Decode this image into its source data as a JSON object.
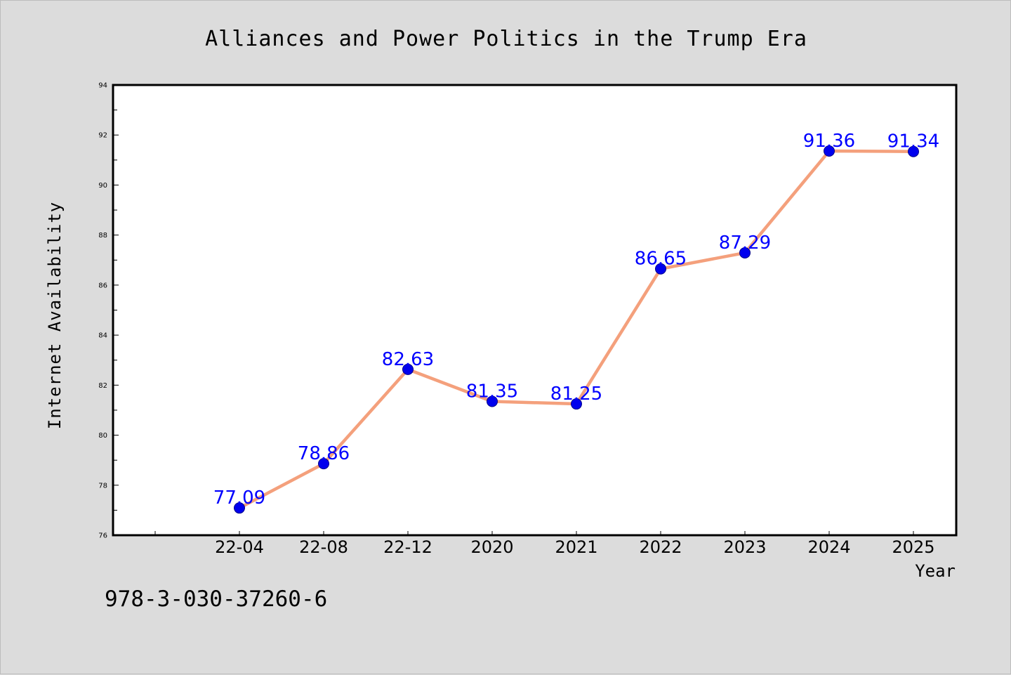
{
  "chart_data": {
    "type": "line",
    "title": "Alliances and Power Politics in the Trump Era",
    "xlabel": "Year",
    "ylabel": "Internet Availability",
    "categories": [
      "22-04",
      "22-08",
      "22-12",
      "2020",
      "2021",
      "2022",
      "2023",
      "2024",
      "2025"
    ],
    "series": [
      {
        "values": [
          77.09,
          78.86,
          82.63,
          81.35,
          81.25,
          86.65,
          87.29,
          91.36,
          91.34
        ]
      }
    ],
    "data_labels": [
      "77.09",
      "78.86",
      "82.63",
      "81.35",
      "81.25",
      "86.65",
      "87.29",
      "91.36",
      "91.34"
    ],
    "ylim": [
      76,
      94
    ],
    "yticks": [
      76,
      78,
      80,
      82,
      84,
      86,
      88,
      90,
      92,
      94
    ],
    "grid": false,
    "legend": "none",
    "colors": {
      "line": "#f4a07c",
      "marker": "#0000ee",
      "marker_edge": "#00008b",
      "label": "#0000ff",
      "plot_bg": "#ffffff",
      "page_bg": "#dcdcdc"
    }
  },
  "footer": {
    "isbn": "978-3-030-37260-6"
  }
}
